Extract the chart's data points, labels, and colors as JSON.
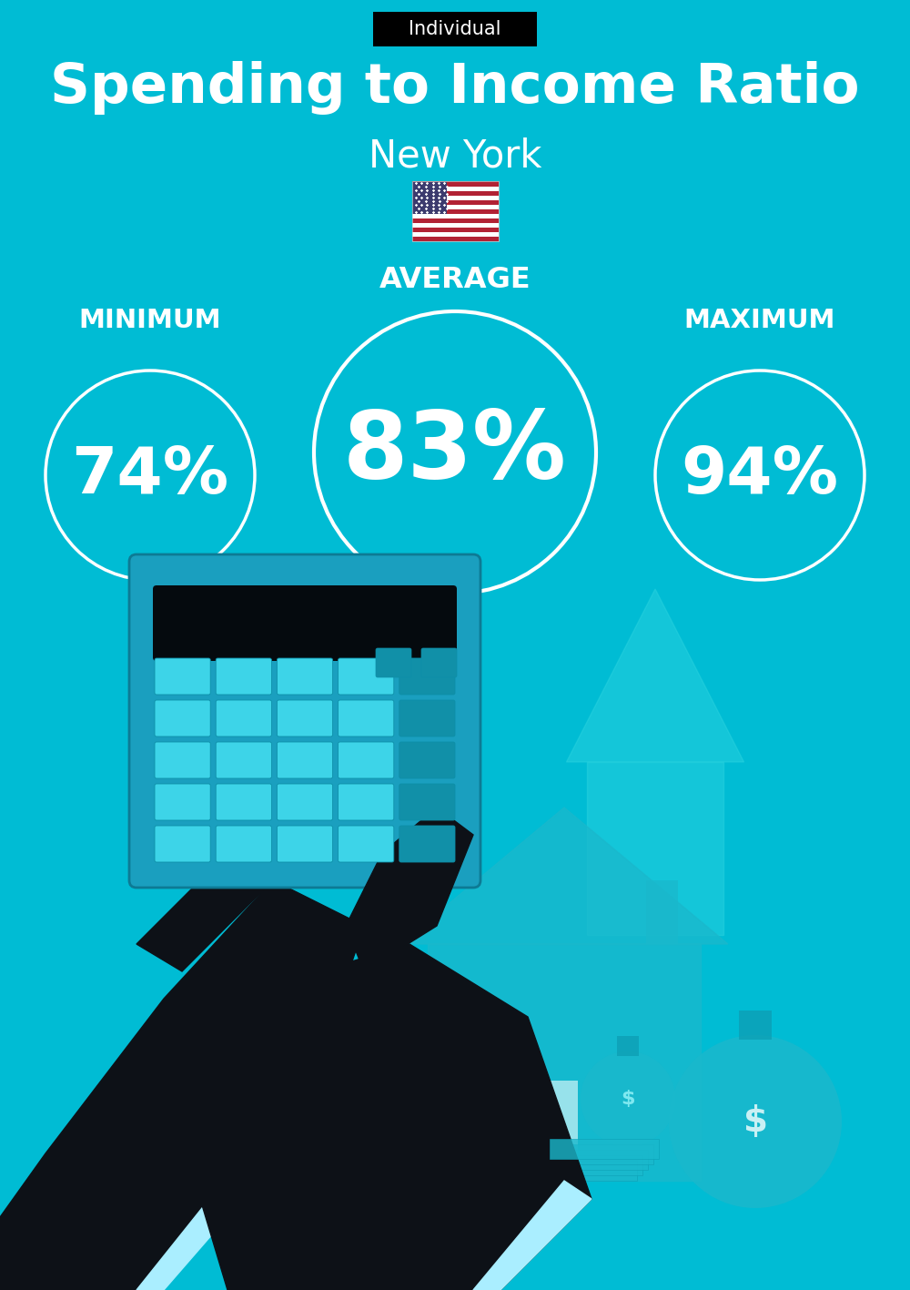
{
  "background_color": "#00BCD4",
  "title": "Spending to Income Ratio",
  "subtitle": "New York",
  "badge_text": "Individual",
  "badge_bg": "#000000",
  "badge_text_color": "#ffffff",
  "title_color": "#ffffff",
  "subtitle_color": "#ffffff",
  "avg_label": "AVERAGE",
  "min_label": "MINIMUM",
  "max_label": "MAXIMUM",
  "avg_value": "83%",
  "min_value": "74%",
  "max_value": "94%",
  "label_color": "#ffffff",
  "circle_color": "#ffffff",
  "value_color": "#ffffff",
  "title_fontsize": 44,
  "subtitle_fontsize": 30,
  "badge_fontsize": 15,
  "avg_label_fontsize": 23,
  "min_max_label_fontsize": 21,
  "avg_value_fontsize": 74,
  "min_max_value_fontsize": 52,
  "fig_width": 10.0,
  "fig_height": 14.17,
  "dpi": 100
}
